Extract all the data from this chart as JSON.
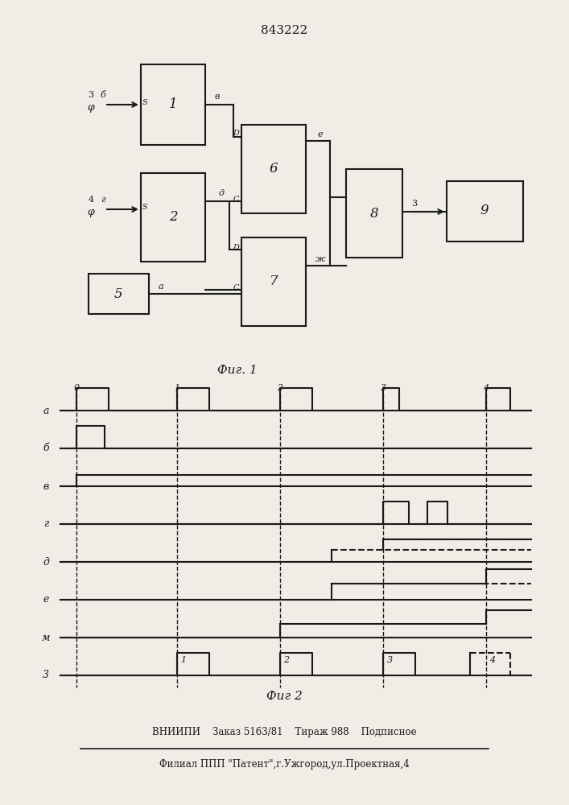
{
  "title": "843222",
  "fig1_caption": "Фиг. 1",
  "fig2_caption": "Фиг 2",
  "footer_line1": "ВНИИПИ    Заказ 5163/81    Тираж 988    Подписное",
  "footer_line2": "Филиал ППП \"Патент\",г.Ужгород,ул.Проектная,4",
  "bg_color": "#f0ede6",
  "line_color": "#1a1a1a"
}
